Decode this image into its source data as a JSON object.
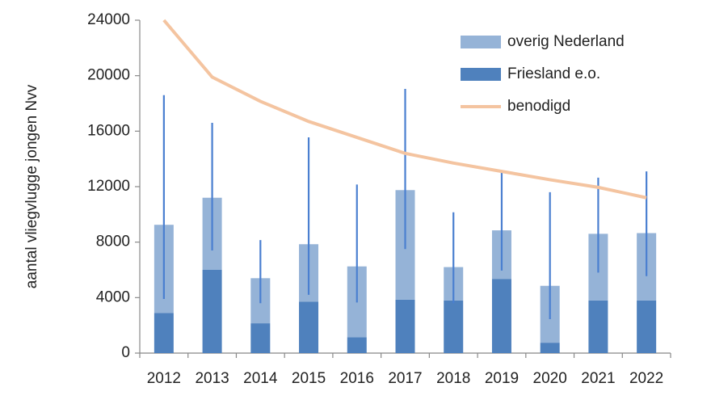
{
  "chart_data": {
    "type": "bar",
    "y_label": "aantal vliegvlugge jongen Nvv",
    "categories": [
      "2012",
      "2013",
      "2014",
      "2015",
      "2016",
      "2017",
      "2018",
      "2019",
      "2020",
      "2021",
      "2022"
    ],
    "series": [
      {
        "name": "overig Nederland",
        "color": "#95b3d7",
        "values": [
          6350,
          5200,
          3250,
          4150,
          5100,
          7900,
          2400,
          3500,
          4100,
          4800,
          4850
        ]
      },
      {
        "name": "Friesland e.o.",
        "color": "#4f81bd",
        "values": [
          2900,
          6000,
          2150,
          3700,
          1150,
          3850,
          3800,
          5350,
          750,
          3800,
          3800
        ]
      },
      {
        "name": "benodigd",
        "type": "line",
        "color": "#f4c4a0",
        "values": [
          24000,
          19900,
          18150,
          16700,
          15550,
          14400,
          13700,
          13100,
          12500,
          11950,
          11200
        ]
      }
    ],
    "range": {
      "color": "#4a7fd0",
      "low": [
        3900,
        7400,
        3600,
        4200,
        3650,
        7500,
        3600,
        5950,
        2450,
        5800,
        5550
      ],
      "high": [
        18600,
        16600,
        8150,
        15550,
        12150,
        19050,
        10150,
        13050,
        11600,
        12650,
        13100
      ]
    },
    "ylim": [
      0,
      24000
    ],
    "yticks": [
      0,
      4000,
      8000,
      12000,
      16000,
      20000,
      24000
    ],
    "grid": false,
    "legend": "top-right"
  }
}
